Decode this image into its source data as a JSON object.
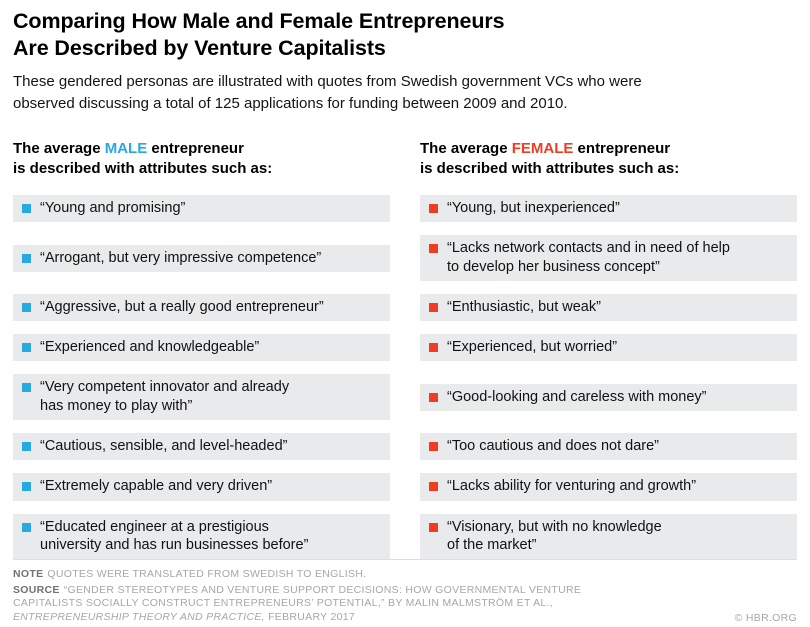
{
  "colors": {
    "male_accent": "#27aae1",
    "female_accent": "#ee3d23",
    "row_background": "#e9eaeb"
  },
  "header": {
    "title": "Comparing How Male and Female Entrepreneurs\nAre Described by Venture Capitalists",
    "subtitle": "These gendered personas are illustrated with quotes from Swedish government VCs who were\nobserved discussing a total of 125 applications for funding between 2009 and 2010."
  },
  "male": {
    "heading_prefix": "The average ",
    "heading_keyword": "MALE",
    "heading_suffix": " entrepreneur",
    "heading_line2": "is described with attributes such as:",
    "items": [
      "“Young and promising”",
      "“Arrogant, but very impressive competence”",
      "“Aggressive, but a really good entrepreneur”",
      "“Experienced and knowledgeable”",
      "“Very competent innovator and already\nhas money to play with”",
      "“Cautious, sensible, and level-headed”",
      "“Extremely capable and very driven”",
      "“Educated engineer at a prestigious\nuniversity and has run businesses before”"
    ]
  },
  "female": {
    "heading_prefix": "The average ",
    "heading_keyword": "FEMALE",
    "heading_suffix": " entrepreneur",
    "heading_line2": "is described with attributes such as:",
    "items": [
      "“Young, but inexperienced”",
      "“Lacks network contacts and in need of help\nto develop her business concept”",
      "“Enthusiastic, but weak”",
      "“Experienced, but worried”",
      "“Good-looking and careless with money”",
      "“Too cautious and does not dare”",
      "“Lacks ability for venturing and growth”",
      "“Visionary, but with no knowledge\nof the market”"
    ]
  },
  "footer": {
    "note_label": "NOTE",
    "note_text": "QUOTES WERE TRANSLATED FROM SWEDISH TO ENGLISH.",
    "source_label": "SOURCE",
    "source_text": "“GENDER STEREOTYPES AND VENTURE SUPPORT DECISIONS: HOW GOVERNMENTAL VENTURE\nCAPITALISTS SOCIALLY CONSTRUCT ENTREPRENEURS’ POTENTIAL,” BY MALIN MALMSTRÖM ET AL.,\n",
    "source_italic": "ENTREPRENEURSHIP THEORY AND PRACTICE,",
    "source_tail": " FEBRUARY 2017",
    "copyright": "© HBR.ORG"
  },
  "chart_data": {
    "type": "table",
    "title": "Comparing How Male and Female Entrepreneurs Are Described by Venture Capitalists",
    "subtitle": "These gendered personas are illustrated with quotes from Swedish government VCs who were observed discussing a total of 125 applications for funding between 2009 and 2010.",
    "columns": [
      "The average MALE entrepreneur is described with attributes such as:",
      "The average FEMALE entrepreneur is described with attributes such as:"
    ],
    "rows": [
      [
        "Young and promising",
        "Young, but inexperienced"
      ],
      [
        "Arrogant, but very impressive competence",
        "Lacks network contacts and in need of help to develop her business concept"
      ],
      [
        "Aggressive, but a really good entrepreneur",
        "Enthusiastic, but weak"
      ],
      [
        "Experienced and knowledgeable",
        "Experienced, but worried"
      ],
      [
        "Very competent innovator and already has money to play with",
        "Good-looking and careless with money"
      ],
      [
        "Cautious, sensible, and level-headed",
        "Too cautious and does not dare"
      ],
      [
        "Extremely capable and very driven",
        "Lacks ability for venturing and growth"
      ],
      [
        "Educated engineer at a prestigious university and has run businesses before",
        "Visionary, but with no knowledge of the market"
      ]
    ],
    "notes": "Quotes were translated from Swedish to English.",
    "source": "“Gender Stereotypes and Venture Support Decisions: How Governmental Venture Capitalists Socially Construct Entrepreneurs’ Potential,” by Malin Malmström et al., Entrepreneurship Theory and Practice, February 2017"
  }
}
